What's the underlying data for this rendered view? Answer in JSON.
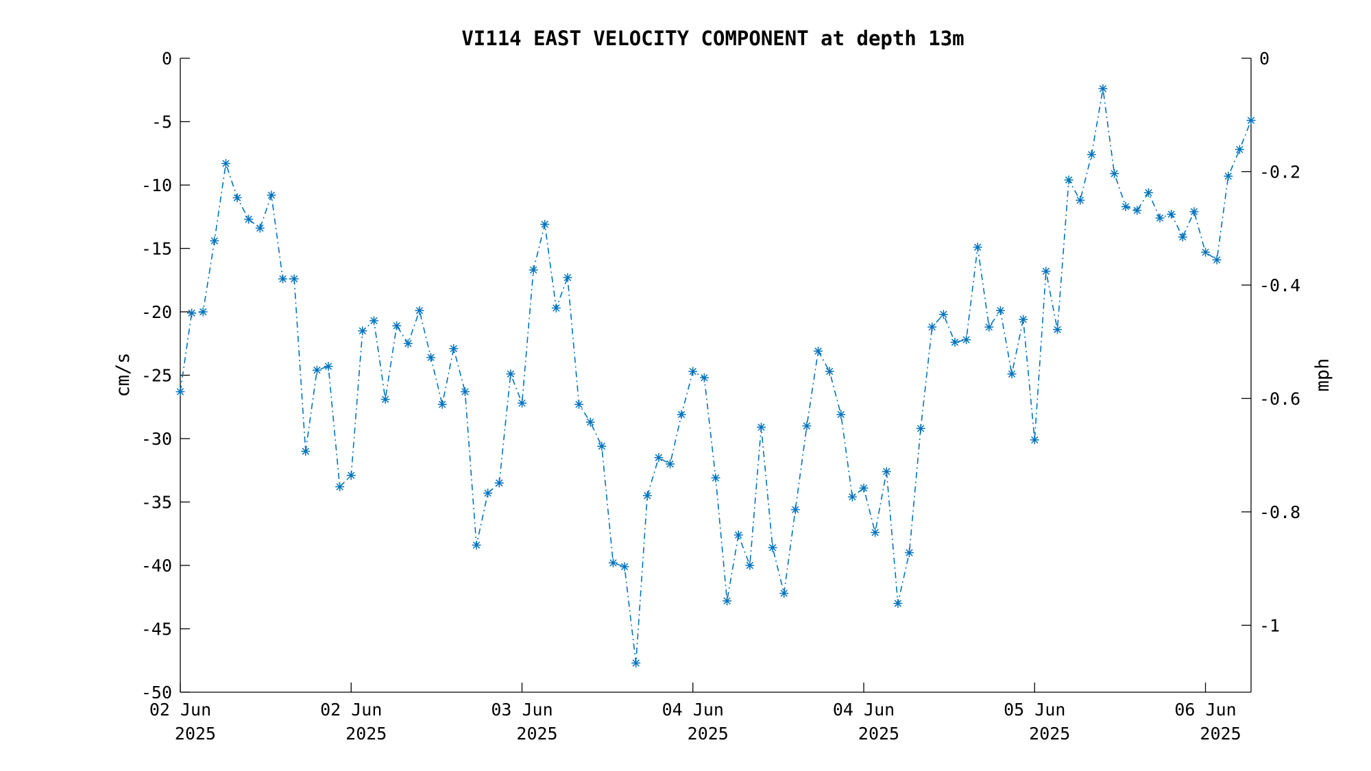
{
  "chart_data": {
    "type": "line",
    "title": "VI114 EAST VELOCITY COMPONENT at depth 13m",
    "ylabel_left": "cm/s",
    "ylabel_right": "mph",
    "ylim_left": [
      -50,
      0
    ],
    "ylim_right": [
      -1.118,
      0
    ],
    "left_ticks": [
      0,
      -5,
      -10,
      -15,
      -20,
      -25,
      -30,
      -35,
      -40,
      -45,
      -50
    ],
    "left_tick_labels": [
      "0",
      "-5",
      "-10",
      "-15",
      "-20",
      "-25",
      "-30",
      "-35",
      "-40",
      "-45",
      "-50"
    ],
    "right_ticks": [
      0,
      -0.2,
      -0.4,
      -0.6,
      -0.8,
      -1
    ],
    "right_tick_labels": [
      "0",
      "-0.2",
      "-0.4",
      "-0.6",
      "-0.8",
      "-1"
    ],
    "x_ticks": [
      0,
      15,
      30,
      45,
      60,
      75,
      90
    ],
    "x_tick_labels": [
      {
        "day": "02 Jun",
        "year": "2025"
      },
      {
        "day": "02 Jun",
        "year": "2025"
      },
      {
        "day": "03 Jun",
        "year": "2025"
      },
      {
        "day": "04 Jun",
        "year": "2025"
      },
      {
        "day": "04 Jun",
        "year": "2025"
      },
      {
        "day": "05 Jun",
        "year": "2025"
      },
      {
        "day": "06 Jun",
        "year": "2025"
      }
    ],
    "grid": false,
    "series": [
      {
        "line_style": "dash-dot",
        "marker": "asterisk",
        "color": "#0072BD",
        "values": [
          -26.3,
          -20.1,
          -20.0,
          -14.4,
          -8.3,
          -11.0,
          -12.7,
          -13.4,
          -10.8,
          -17.4,
          -17.4,
          -31.0,
          -24.6,
          -24.3,
          -33.8,
          -32.9,
          -21.5,
          -20.7,
          -26.9,
          -21.1,
          -22.5,
          -19.9,
          -23.6,
          -27.3,
          -22.9,
          -26.3,
          -38.4,
          -34.3,
          -33.5,
          -24.9,
          -27.2,
          -16.7,
          -13.1,
          -19.7,
          -17.3,
          -27.3,
          -28.7,
          -30.6,
          -39.8,
          -40.1,
          -47.7,
          -34.5,
          -31.5,
          -32.0,
          -28.1,
          -24.7,
          -25.2,
          -33.1,
          -42.8,
          -37.6,
          -40.0,
          -29.1,
          -38.6,
          -42.2,
          -35.6,
          -29.0,
          -23.1,
          -24.7,
          -28.1,
          -34.6,
          -33.9,
          -37.4,
          -32.6,
          -43.0,
          -39.0,
          -29.2,
          -21.2,
          -20.2,
          -22.4,
          -22.2,
          -14.9,
          -21.2,
          -19.9,
          -24.9,
          -20.6,
          -30.1,
          -16.8,
          -21.4,
          -9.6,
          -11.2,
          -7.6,
          -2.4,
          -9.1,
          -11.7,
          -12.0,
          -10.6,
          -12.6,
          -12.3,
          -14.1,
          -12.1,
          -15.3,
          -15.9,
          -9.3,
          -7.2,
          -4.9
        ]
      }
    ]
  }
}
